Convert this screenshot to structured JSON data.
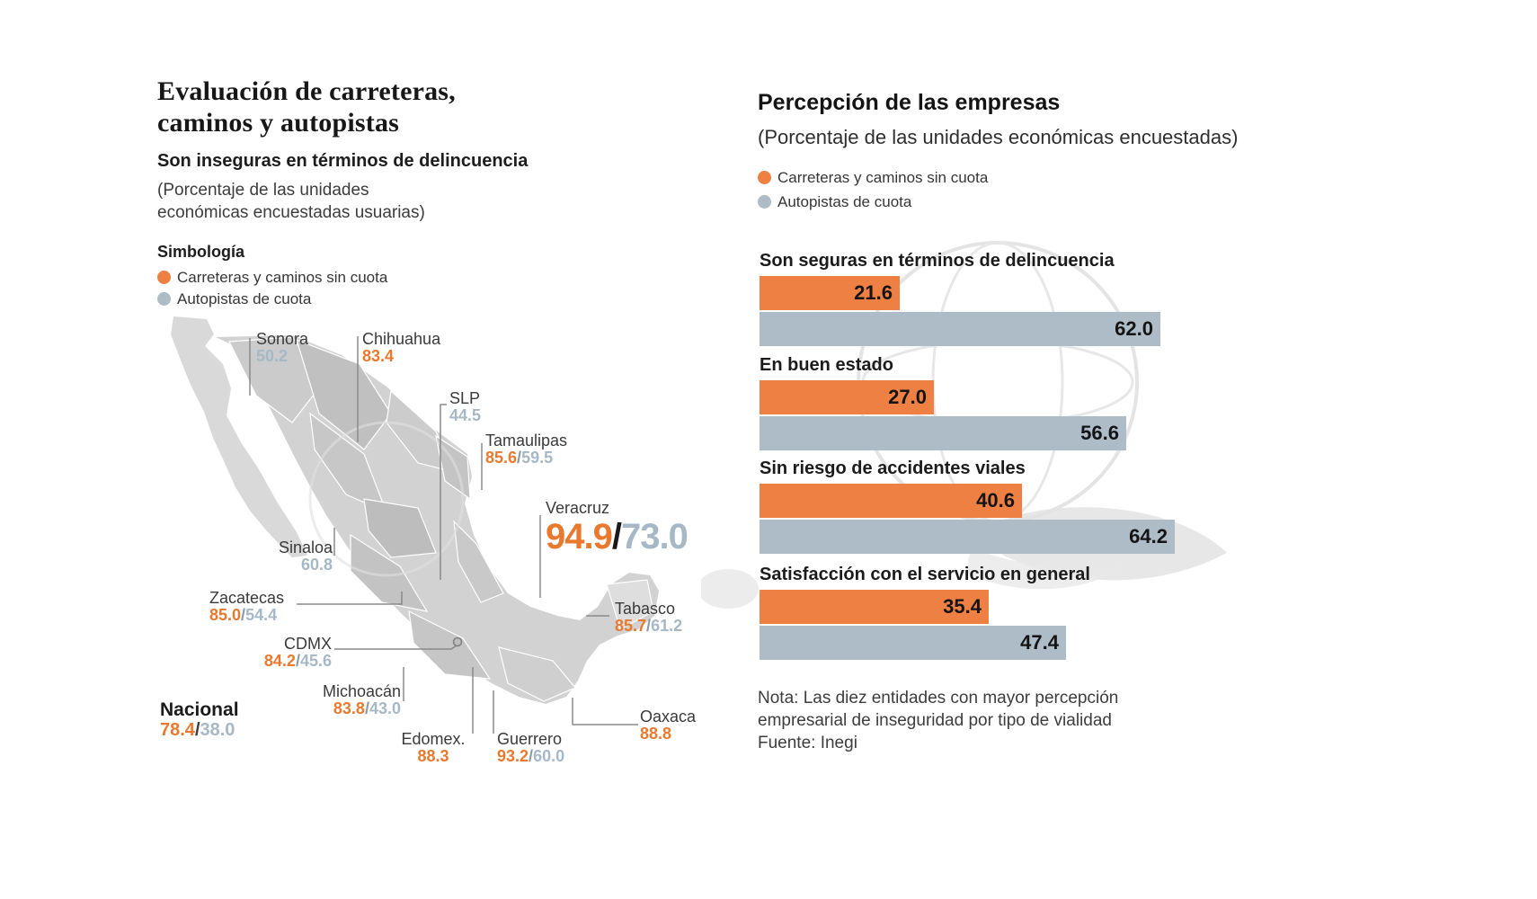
{
  "colors": {
    "orange": "#ee8043",
    "gray_blue": "#aebcc8",
    "orange_text": "#e9792e",
    "gray_text": "#a6b8c6"
  },
  "separator": "/",
  "left": {
    "title_line1": "Evaluación de carreteras,",
    "title_line2": "caminos y autopistas",
    "subtitle": "Son inseguras en términos de delincuencia",
    "paren_line1": "(Porcentaje de las unidades",
    "paren_line2": "económicas encuestadas usuarias)",
    "legend_title": "Simbología",
    "legend": [
      {
        "label": "Carreteras y caminos sin cuota"
      },
      {
        "label": "Autopistas de cuota"
      }
    ],
    "national": {
      "name": "Nacional",
      "orange": "78.4",
      "gray": "38.0"
    },
    "states": [
      {
        "name": "Sonora",
        "gray": "50.2"
      },
      {
        "name": "Chihuahua",
        "orange": "83.4"
      },
      {
        "name": "SLP",
        "gray": "44.5"
      },
      {
        "name": "Tamaulipas",
        "orange": "85.6",
        "gray": "59.5"
      },
      {
        "name": "Veracruz",
        "orange": "94.9",
        "gray": "73.0"
      },
      {
        "name": "Sinaloa",
        "gray": "60.8"
      },
      {
        "name": "Zacatecas",
        "orange": "85.0",
        "gray": "54.4"
      },
      {
        "name": "CDMX",
        "orange": "84.2",
        "gray": "45.6"
      },
      {
        "name": "Michoacán",
        "orange": "83.8",
        "gray": "43.0"
      },
      {
        "name": "Edomex.",
        "orange": "88.3"
      },
      {
        "name": "Guerrero",
        "orange": "93.2",
        "gray": "60.0"
      },
      {
        "name": "Oaxaca",
        "orange": "88.8"
      },
      {
        "name": "Tabasco",
        "orange": "85.7",
        "gray": "61.2"
      }
    ]
  },
  "right": {
    "title": "Percepción de las empresas",
    "subtitle": "(Porcentaje de las unidades económicas encuestadas)",
    "note_line1": "Nota: Las diez entidades con mayor percepción",
    "note_line2": "empresarial de inseguridad por tipo de vialidad",
    "source": "Fuente: Inegi"
  },
  "chart_data": [
    {
      "type": "heatmap",
      "subtype": "choropleth-map",
      "region": "México",
      "title": "Evaluación de carreteras, caminos y autopistas",
      "subtitle": "Son inseguras en términos de delincuencia (Porcentaje de las unidades económicas encuestadas usuarias)",
      "series_names": [
        "Carreteras y caminos sin cuota",
        "Autopistas de cuota"
      ],
      "values": [
        {
          "entity": "Nacional",
          "carreteras_sin_cuota": 78.4,
          "autopistas_cuota": 38.0
        },
        {
          "entity": "Sonora",
          "autopistas_cuota": 50.2
        },
        {
          "entity": "Chihuahua",
          "carreteras_sin_cuota": 83.4
        },
        {
          "entity": "SLP",
          "autopistas_cuota": 44.5
        },
        {
          "entity": "Tamaulipas",
          "carreteras_sin_cuota": 85.6,
          "autopistas_cuota": 59.5
        },
        {
          "entity": "Veracruz",
          "carreteras_sin_cuota": 94.9,
          "autopistas_cuota": 73.0
        },
        {
          "entity": "Sinaloa",
          "autopistas_cuota": 60.8
        },
        {
          "entity": "Zacatecas",
          "carreteras_sin_cuota": 85.0,
          "autopistas_cuota": 54.4
        },
        {
          "entity": "CDMX",
          "carreteras_sin_cuota": 84.2,
          "autopistas_cuota": 45.6
        },
        {
          "entity": "Michoacán",
          "carreteras_sin_cuota": 83.8,
          "autopistas_cuota": 43.0
        },
        {
          "entity": "Edomex.",
          "carreteras_sin_cuota": 88.3
        },
        {
          "entity": "Guerrero",
          "carreteras_sin_cuota": 93.2,
          "autopistas_cuota": 60.0
        },
        {
          "entity": "Oaxaca",
          "carreteras_sin_cuota": 88.8
        },
        {
          "entity": "Tabasco",
          "carreteras_sin_cuota": 85.7,
          "autopistas_cuota": 61.2
        }
      ]
    },
    {
      "type": "bar",
      "orientation": "horizontal",
      "title": "Percepción de las empresas",
      "subtitle": "(Porcentaje de las unidades económicas encuestadas)",
      "categories": [
        "Son seguras en términos de delincuencia",
        "En buen estado",
        "Sin riesgo de accidentes viales",
        "Satisfacción con el servicio en general"
      ],
      "series": [
        {
          "name": "Carreteras y caminos sin cuota",
          "color": "#ee8043",
          "values": [
            21.6,
            27.0,
            40.6,
            35.4
          ],
          "labels": [
            "21.6",
            "27.0",
            "40.6",
            "35.4"
          ]
        },
        {
          "name": "Autopistas de cuota",
          "color": "#aebcc8",
          "values": [
            62.0,
            56.6,
            64.2,
            47.4
          ],
          "labels": [
            "62.0",
            "56.6",
            "64.2",
            "47.4"
          ]
        }
      ],
      "xlim": [
        0,
        70
      ],
      "grid": false,
      "value_labels": "inside-end",
      "legend_position": "top-left"
    }
  ]
}
